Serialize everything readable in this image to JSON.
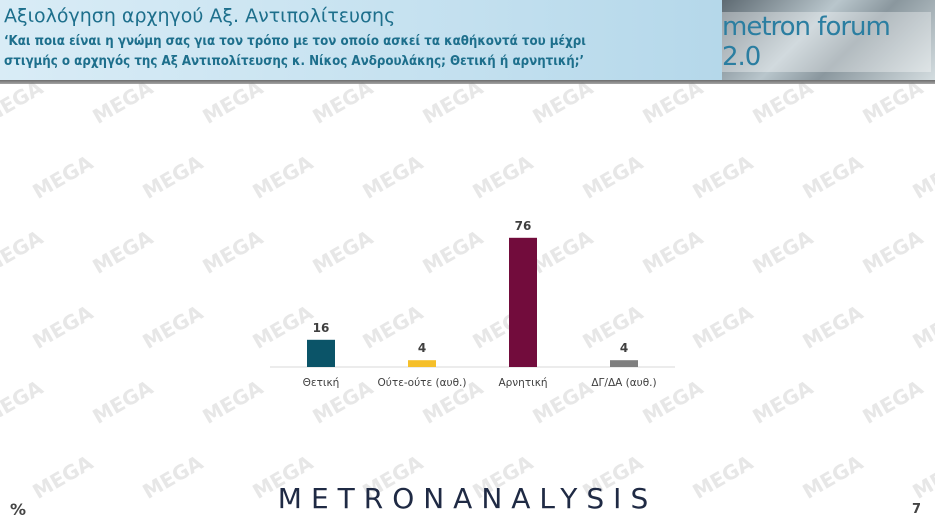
{
  "header": {
    "title": "Αξιολόγηση αρχηγού Αξ. Αντιπολίτευσης",
    "subtitle": "‘Και ποια είναι η γνώμη σας για τον τρόπο με τον οποίο ασκεί τα καθήκοντά του μέχρι στιγμής ο αρχηγός της Αξ Αντιπολίτευσης κ. Νίκος Ανδρουλάκης; Θετική ή αρνητική;’",
    "logo": "metron forum 2.0"
  },
  "watermark": "MEGA",
  "chart_data": {
    "type": "bar",
    "categories": [
      "Θετική",
      "Ούτε-ούτε (αυθ.)",
      "Αρνητική",
      "ΔΓ/ΔΑ (αυθ.)"
    ],
    "values": [
      16,
      4,
      76,
      4
    ],
    "colors": [
      "#0b5468",
      "#f5bf2a",
      "#720c3c",
      "#7f7f7f"
    ],
    "unit": "%",
    "grid": false
  },
  "footer": {
    "brand": "METRONANALYSIS",
    "unit": "%",
    "page": "7"
  }
}
